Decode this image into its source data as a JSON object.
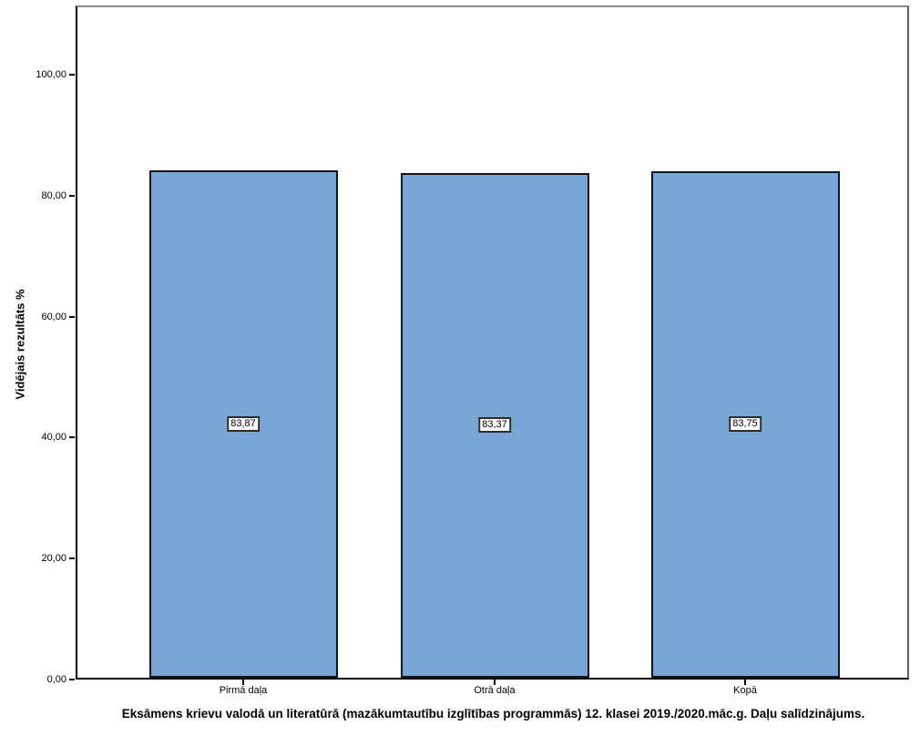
{
  "chart_data": {
    "type": "bar",
    "title": "Eksāmens krievu valodā un literatūrā (mazākumtautību izglītības programmās) 12. klasei 2019./2020.māc.g. Daļu salīdzinājums.",
    "ylabel": "Vidējais rezultāts %",
    "xlabel": "",
    "categories": [
      "Pirmā daļa",
      "Otrā daļa",
      "Kopā"
    ],
    "values": [
      83.87,
      83.37,
      83.75
    ],
    "value_labels": [
      "83,87",
      "83,37",
      "83,75"
    ],
    "y_ticks": [
      0,
      20,
      40,
      60,
      80,
      100
    ],
    "y_tick_labels": [
      "0,00",
      "20,00",
      "40,00",
      "60,00",
      "80,00",
      "100,00"
    ],
    "ylim": [
      0,
      111.4
    ],
    "grid": false,
    "legend_position": "none",
    "bar_color": "#7AA6D6",
    "bar_border_color": "#0f1419",
    "frame_top_color": "#8a8a8a",
    "axis_color": "#000000"
  }
}
